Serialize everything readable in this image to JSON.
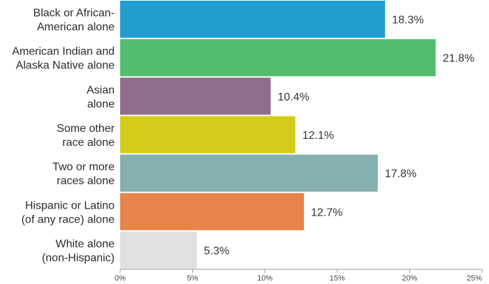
{
  "chart_data": {
    "type": "bar",
    "orientation": "horizontal",
    "categories": [
      [
        "Black or African-",
        "American alone"
      ],
      [
        "American Indian and",
        "Alaska Native alone"
      ],
      [
        "Asian",
        "alone"
      ],
      [
        "Some other",
        "race alone"
      ],
      [
        "Two or more",
        "races alone"
      ],
      [
        "Hispanic or Latino",
        "(of any race) alone"
      ],
      [
        "White alone",
        "(non-Hispanic)"
      ]
    ],
    "values": [
      18.3,
      21.8,
      10.4,
      12.1,
      17.8,
      12.7,
      5.3
    ],
    "value_labels": [
      "18.3%",
      "21.8%",
      "10.4%",
      "12.1%",
      "17.8%",
      "12.7%",
      "5.3%"
    ],
    "colors": [
      "#219ecf",
      "#52bd6d",
      "#906d8b",
      "#d5cc1a",
      "#86b0ad",
      "#e6844a",
      "#e0e0e0"
    ],
    "x_ticks": [
      0,
      5,
      10,
      15,
      20,
      25
    ],
    "x_tick_labels": [
      "0%",
      "5%",
      "10%",
      "15%",
      "20%",
      "25%"
    ],
    "xlim": [
      0,
      25
    ],
    "title": "",
    "xlabel": "",
    "ylabel": "",
    "grid": false,
    "legend": "none"
  }
}
